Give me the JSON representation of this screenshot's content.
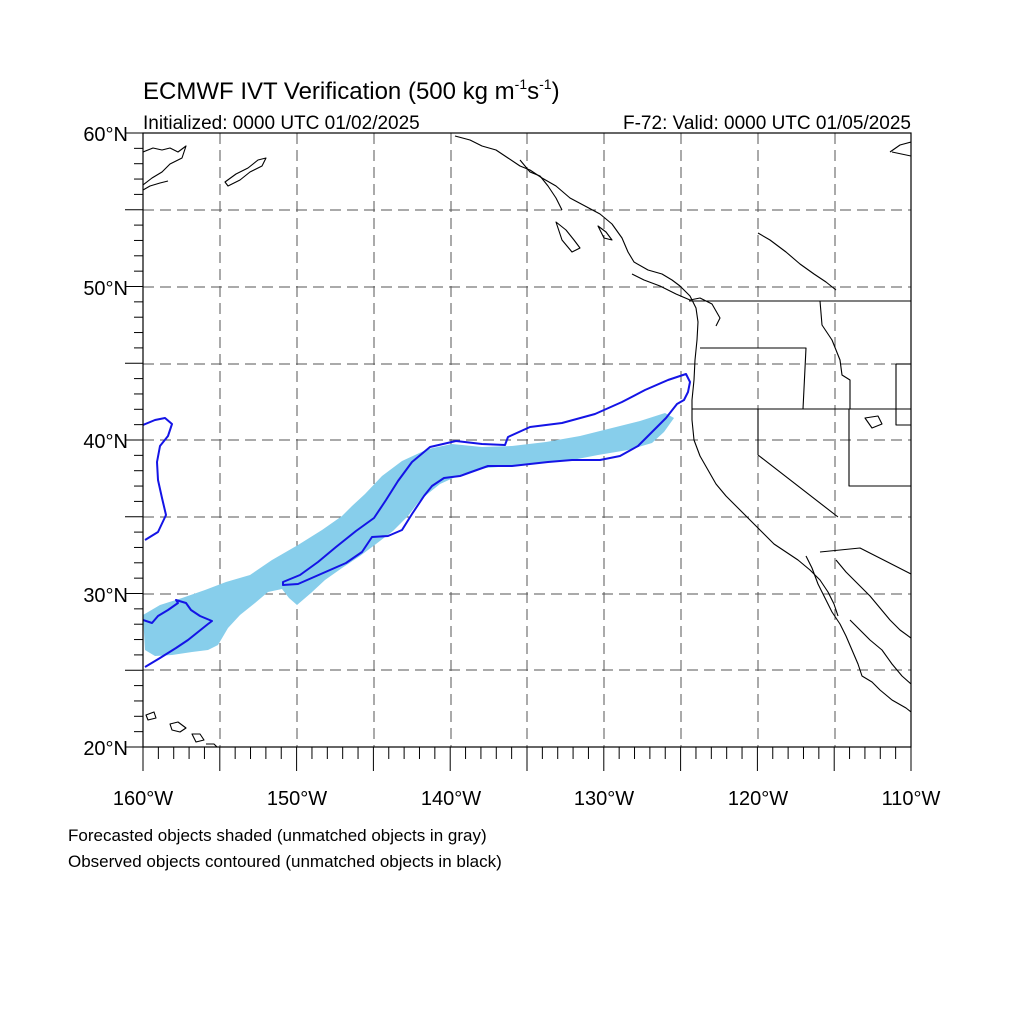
{
  "title": {
    "main": "ECMWF IVT Verification (500 kg m",
    "sup1": "-1",
    "mid": "s",
    "sup2": "-1",
    "end": ")"
  },
  "subtitle_left": "Initialized: 0000 UTC 01/02/2025",
  "subtitle_right": "F-72: Valid: 0000 UTC 01/05/2025",
  "footnotes": {
    "forecast": "Forecasted objects shaded (unmatched objects in gray)",
    "observed": "Observed objects contoured (unmatched objects in black)"
  },
  "map": {
    "lon_range": [
      -160,
      -110
    ],
    "lat_range": [
      20,
      60
    ],
    "lon_ticks": [
      "160°W",
      "150°W",
      "140°W",
      "130°W",
      "120°W",
      "110°W"
    ],
    "lat_ticks": [
      "60°N",
      "50°N",
      "40°N",
      "30°N",
      "20°N"
    ],
    "gridlines": "dashed every 5°",
    "colors": {
      "forecast_fill": "#87ceeb",
      "observed_contour": "#1414e6",
      "coastline": "#000000",
      "grid": "#555555"
    }
  }
}
